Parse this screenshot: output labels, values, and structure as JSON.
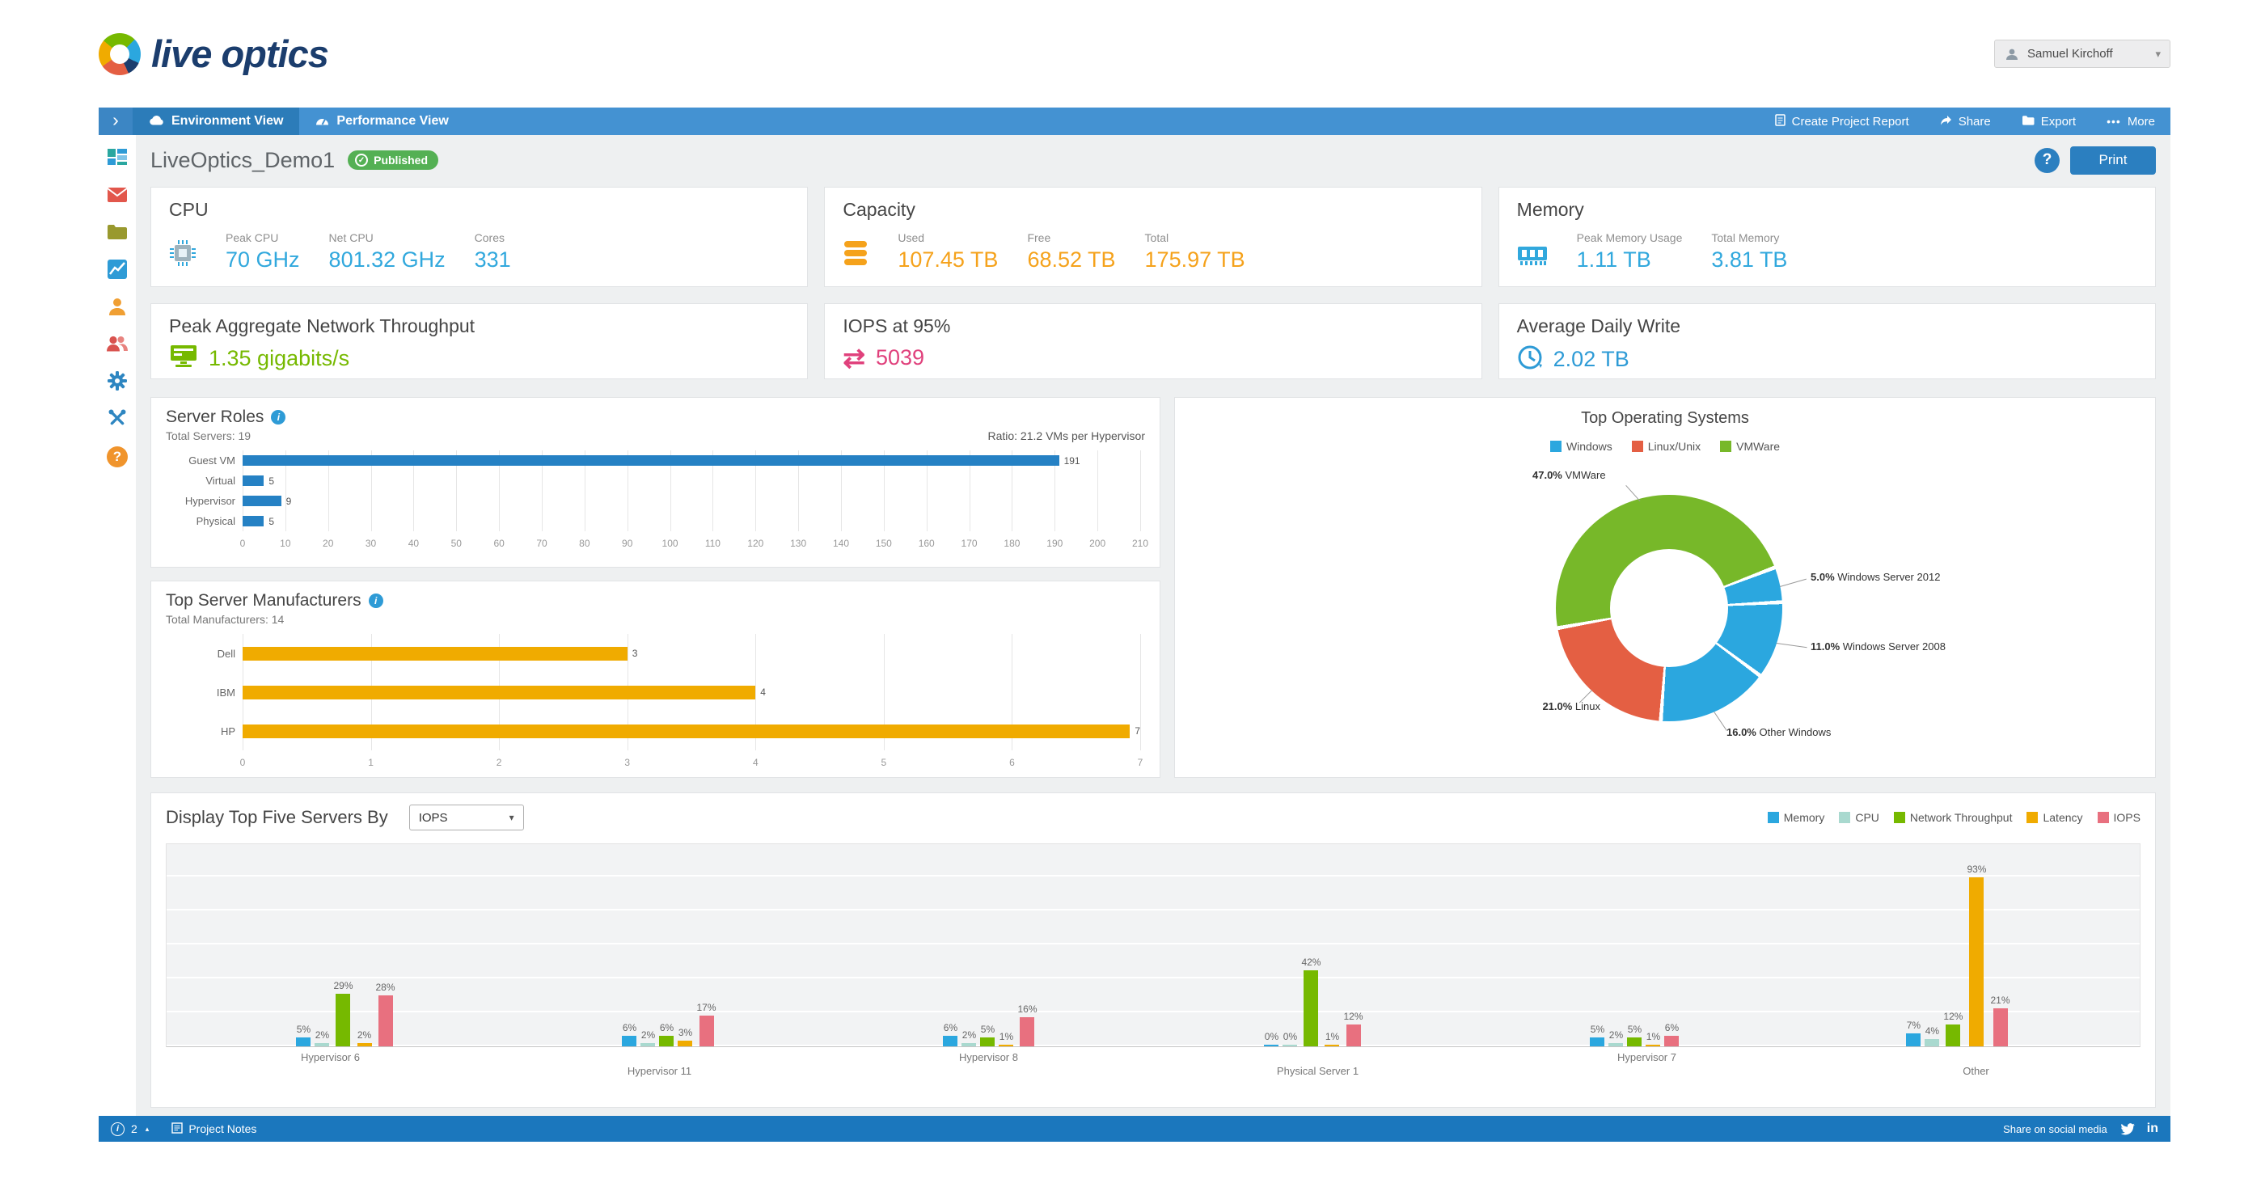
{
  "app": {
    "logo_text": "live optics",
    "user_name": "Samuel Kirchoff"
  },
  "icons": {
    "question": "?",
    "check": "✓",
    "info": "i",
    "chevron_right": "›",
    "caret_down": "▾",
    "caret_up": "▴",
    "more_dots": "•••",
    "linkedin": "in",
    "iops_arrows": "⇄"
  },
  "nav": {
    "tabs": [
      {
        "label": "Environment View"
      },
      {
        "label": "Performance View"
      }
    ],
    "actions": {
      "create_report": "Create Project Report",
      "share": "Share",
      "export": "Export",
      "more": "More"
    }
  },
  "sidebar": {
    "icons": [
      "dashboard",
      "mail",
      "documents",
      "charts",
      "user",
      "users",
      "settings",
      "tools",
      "help"
    ]
  },
  "page": {
    "title": "LiveOptics_Demo1",
    "status_badge": "Published",
    "print_label": "Print"
  },
  "metrics": {
    "cpu": {
      "title": "CPU",
      "fields": [
        {
          "label": "Peak CPU",
          "value": "70 GHz"
        },
        {
          "label": "Net CPU",
          "value": "801.32 GHz"
        },
        {
          "label": "Cores",
          "value": "331"
        }
      ]
    },
    "capacity": {
      "title": "Capacity",
      "fields": [
        {
          "label": "Used",
          "value": "107.45 TB"
        },
        {
          "label": "Free",
          "value": "68.52 TB"
        },
        {
          "label": "Total",
          "value": "175.97 TB"
        }
      ]
    },
    "memory": {
      "title": "Memory",
      "fields": [
        {
          "label": "Peak Memory Usage",
          "value": "1.11 TB"
        },
        {
          "label": "Total Memory",
          "value": "3.81 TB"
        }
      ]
    },
    "network": {
      "title": "Peak Aggregate Network Throughput",
      "value": "1.35 gigabits/s"
    },
    "iops": {
      "title": "IOPS at 95%",
      "value": "5039"
    },
    "daily_write": {
      "title": "Average Daily Write",
      "value": "2.02 TB"
    }
  },
  "footer": {
    "note_count": "2",
    "project_notes": "Project Notes",
    "share_text": "Share on social media"
  },
  "chart_data": [
    {
      "type": "bar",
      "orientation": "horizontal",
      "title": "Server Roles",
      "subtitle": "Total Servers: 19",
      "annotation": "Ratio: 21.2 VMs per Hypervisor",
      "categories": [
        "Guest VM",
        "Virtual",
        "Hypervisor",
        "Physical"
      ],
      "values": [
        191,
        5,
        9,
        5
      ],
      "xlim": [
        0,
        210
      ],
      "tick_step": 10,
      "bar_color": "#2581c4",
      "grid": true
    },
    {
      "type": "bar",
      "orientation": "horizontal",
      "title": "Top Server Manufacturers",
      "subtitle": "Total Manufacturers: 14",
      "categories": [
        "Dell",
        "IBM",
        "HP"
      ],
      "values": [
        3,
        4,
        7
      ],
      "xlim": [
        0,
        7
      ],
      "tick_step": 1,
      "bar_color": "#f0ab00",
      "grid": true
    },
    {
      "type": "pie",
      "donut": true,
      "title": "Top Operating Systems",
      "legend": [
        {
          "label": "Windows",
          "color": "#2ba7df"
        },
        {
          "label": "Linux/Unix",
          "color": "#e45f43"
        },
        {
          "label": "VMWare",
          "color": "#77b829"
        }
      ],
      "start_angle_deg": 260.8,
      "slices": [
        {
          "label": "VMWare",
          "pct": 47.0,
          "color": "#77b829"
        },
        {
          "label": "Windows Server 2012",
          "pct": 5.0,
          "color": "#2ba7df"
        },
        {
          "label": "Windows Server 2008",
          "pct": 11.0,
          "color": "#2ba7df"
        },
        {
          "label": "Other Windows",
          "pct": 16.0,
          "color": "#2ba7df"
        },
        {
          "label": "Linux",
          "pct": 21.0,
          "color": "#e45f43"
        }
      ]
    },
    {
      "type": "bar",
      "orientation": "vertical",
      "grouped": true,
      "title": "Display Top Five Servers By",
      "selector_value": "IOPS",
      "categories": [
        "Hypervisor 6",
        "Hypervisor 11",
        "Hypervisor 8",
        "Physical Server 1",
        "Hypervisor 7",
        "Other"
      ],
      "series": [
        {
          "name": "Memory",
          "color": "#2ba7df",
          "values": [
            5,
            6,
            6,
            0,
            5,
            7
          ]
        },
        {
          "name": "CPU",
          "color": "#a9d9cf",
          "values": [
            2,
            2,
            2,
            0,
            2,
            4
          ]
        },
        {
          "name": "Network Throughput",
          "color": "#76b900",
          "values": [
            29,
            6,
            5,
            42,
            5,
            12
          ]
        },
        {
          "name": "Latency",
          "color": "#f0ab00",
          "values": [
            2,
            3,
            1,
            1,
            1,
            93
          ]
        },
        {
          "name": "IOPS",
          "color": "#e8707f",
          "values": [
            28,
            17,
            16,
            12,
            6,
            21
          ]
        }
      ],
      "ylim": [
        0,
        100
      ],
      "unit": "%",
      "grid": true,
      "legend_position": "top-right"
    }
  ]
}
